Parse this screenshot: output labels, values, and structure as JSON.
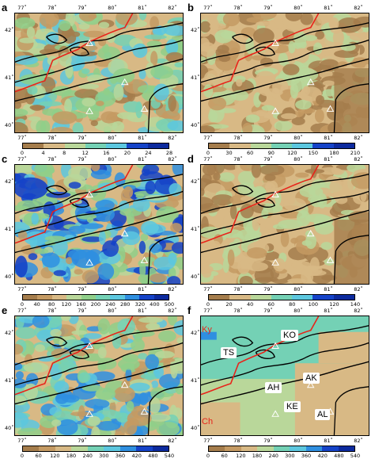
{
  "panels": [
    {
      "letter": "a",
      "ticks": [
        "0",
        "4",
        "8",
        "12",
        "16",
        "20",
        "24",
        "28"
      ]
    },
    {
      "letter": "b",
      "ticks": [
        "0",
        "30",
        "60",
        "90",
        "120",
        "150",
        "180",
        "210"
      ]
    },
    {
      "letter": "c",
      "ticks": [
        "0",
        "40",
        "80",
        "120",
        "160",
        "200",
        "240",
        "280",
        "320",
        "400",
        "500"
      ]
    },
    {
      "letter": "d",
      "ticks": [
        "0",
        "20",
        "40",
        "60",
        "80",
        "100",
        "120",
        "140"
      ]
    },
    {
      "letter": "e",
      "ticks": [
        "0",
        "60",
        "120",
        "180",
        "240",
        "300",
        "360",
        "420",
        "480",
        "540"
      ]
    },
    {
      "letter": "f",
      "ticks": [
        "0",
        "60",
        "120",
        "180",
        "240",
        "300",
        "360",
        "420",
        "480",
        "540"
      ]
    }
  ],
  "lon_labels": [
    "77˚",
    "78˚",
    "79˚",
    "80˚",
    "81˚",
    "82˚"
  ],
  "lat_labels": [
    "42˚",
    "41˚",
    "40˚"
  ],
  "stations": [
    "TS",
    "KO",
    "AK",
    "AH",
    "KE",
    "AL"
  ],
  "country_labels": [
    "Ky",
    "Ch"
  ],
  "colors": {
    "brown_dark": "#a57d4c",
    "brown": "#c49a63",
    "tan": "#d8b985",
    "pale_green": "#b9d79a",
    "green": "#8fcf8a",
    "cyan_green": "#74d1b5",
    "cyan": "#5cc7df",
    "blue": "#2f8fe0",
    "deep_blue": "#1543c8",
    "border_red": "#e8231a",
    "contour": "#000000"
  }
}
